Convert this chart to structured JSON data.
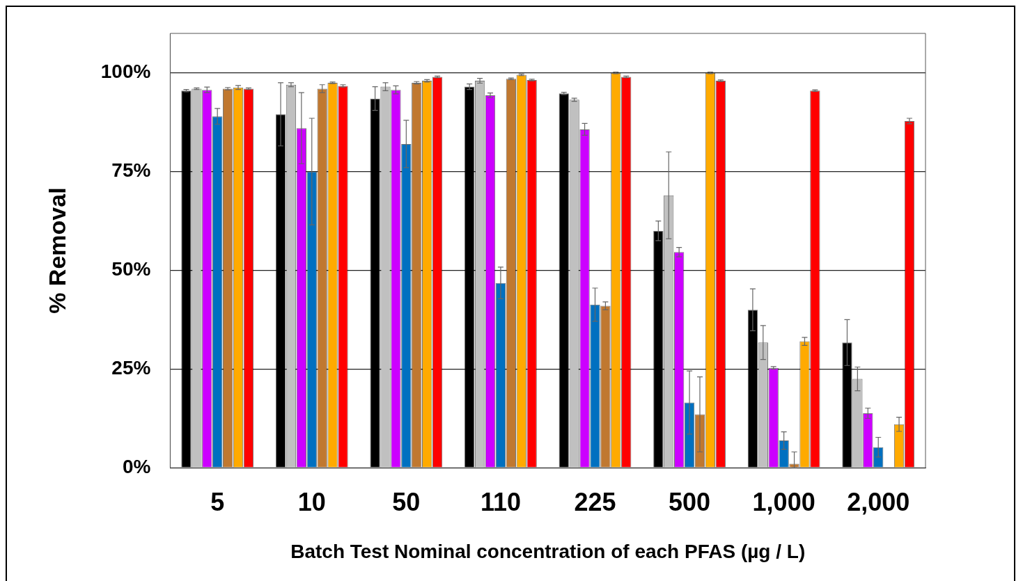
{
  "chart_data": {
    "type": "bar",
    "xlabel": "Batch Test Nominal concentration of each PFAS (µg / L)",
    "ylabel": "% Removal",
    "categories": [
      "5",
      "10",
      "50",
      "110",
      "225",
      "500",
      "1,000",
      "2,000"
    ],
    "ylim": [
      0,
      110
    ],
    "yticks": [
      {
        "value": 0,
        "label": "0%"
      },
      {
        "value": 25,
        "label": "25%"
      },
      {
        "value": 50,
        "label": "50%"
      },
      {
        "value": 75,
        "label": "75%"
      },
      {
        "value": 100,
        "label": "100%"
      }
    ],
    "grid": "y",
    "series": [
      {
        "color": "#000000",
        "values": [
          95.5,
          89.5,
          93.5,
          96.5,
          94.8,
          60,
          40,
          31.7
        ],
        "errors": [
          0.3,
          8,
          3,
          0.7,
          0.3,
          2.5,
          5.3,
          5.8
        ]
      },
      {
        "color": "#c0c0c0",
        "values": [
          96,
          97,
          96.5,
          98,
          93.2,
          69,
          31.7,
          22.5
        ],
        "errors": [
          0.2,
          0.5,
          1,
          0.6,
          0.4,
          11,
          4.3,
          3
        ]
      },
      {
        "color": "#cc00ff",
        "values": [
          95.7,
          86,
          95.7,
          94.3,
          85.7,
          54.6,
          25.3,
          13.8
        ],
        "errors": [
          0.7,
          9,
          1,
          0.6,
          1.5,
          1.2,
          0.3,
          1.3
        ]
      },
      {
        "color": "#0070c0",
        "values": [
          89,
          75,
          82,
          46.8,
          41.3,
          16.5,
          6.9,
          5.2
        ],
        "errors": [
          2,
          13.5,
          6,
          4,
          4.2,
          8,
          2.2,
          2.5
        ]
      },
      {
        "color": "#c07830",
        "values": [
          96,
          96,
          97.5,
          98.5,
          41,
          13.5,
          1,
          null
        ],
        "errors": [
          0.3,
          1,
          0.3,
          0.2,
          1,
          9.5,
          [
            0,
            4
          ],
          null
        ]
      },
      {
        "color": "#ffaa00",
        "values": [
          96.3,
          97.5,
          98,
          99.5,
          100,
          100,
          32,
          11
        ],
        "errors": [
          0.5,
          0.2,
          0.3,
          0.2,
          0.2,
          0.2,
          1,
          1.8
        ]
      },
      {
        "color": "#ff0000",
        "values": [
          96,
          96.7,
          99,
          98.2,
          99,
          98,
          95.5,
          87.8
        ],
        "errors": [
          0.2,
          0.3,
          0.2,
          0.2,
          0.2,
          0.2,
          0.2,
          0.7
        ]
      }
    ]
  }
}
